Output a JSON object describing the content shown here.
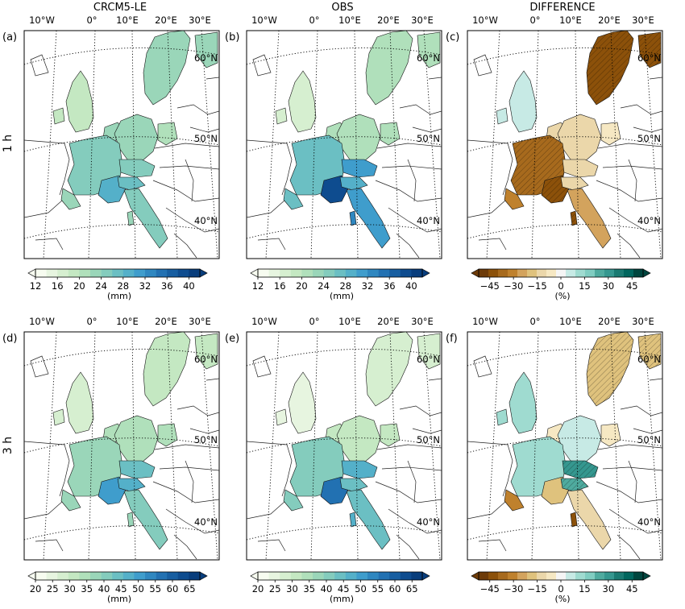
{
  "columns": [
    {
      "id": "crcm5",
      "title": "CRCM5-LE"
    },
    {
      "id": "obs",
      "title": "OBS"
    },
    {
      "id": "diff",
      "title": "DIFFERENCE"
    }
  ],
  "rows": [
    {
      "label": "1 h"
    },
    {
      "label": "3 h"
    }
  ],
  "chart_data": {
    "type": "heatmap",
    "panels": [
      {
        "letter": "(a)",
        "row": "1 h",
        "column": "CRCM5-LE",
        "colorbar": "amount_1h"
      },
      {
        "letter": "(b)",
        "row": "1 h",
        "column": "OBS",
        "colorbar": "amount_1h"
      },
      {
        "letter": "(c)",
        "row": "1 h",
        "column": "DIFFERENCE",
        "colorbar": "difference"
      },
      {
        "letter": "(d)",
        "row": "3 h",
        "column": "CRCM5-LE",
        "colorbar": "amount_3h"
      },
      {
        "letter": "(e)",
        "row": "3 h",
        "column": "OBS",
        "colorbar": "amount_3h"
      },
      {
        "letter": "(f)",
        "row": "3 h",
        "column": "DIFFERENCE",
        "colorbar": "difference"
      }
    ],
    "map_labels": {
      "lon_top": [
        "10°W",
        "0°",
        "10°E",
        "20°E",
        "30°E"
      ],
      "lat_right": [
        "60°N",
        "50°N",
        "40°N"
      ]
    },
    "colorbars": {
      "amount_1h": {
        "unit": "(mm)",
        "ticks": [
          "12",
          "16",
          "20",
          "24",
          "28",
          "32",
          "36",
          "40"
        ],
        "range": [
          12,
          42
        ],
        "colors": [
          "#f7fcf0",
          "#e7f5e0",
          "#d6efd0",
          "#c4e8c2",
          "#b0e0bb",
          "#9ad6b9",
          "#84ccbd",
          "#6bbfc3",
          "#54b0c9",
          "#3f9dcc",
          "#2f87c0",
          "#2271b2",
          "#175ea1",
          "#0e4c8f",
          "#083d7c"
        ]
      },
      "amount_3h": {
        "unit": "(mm)",
        "ticks": [
          "20",
          "25",
          "30",
          "35",
          "40",
          "45",
          "50",
          "55",
          "60",
          "65"
        ],
        "range": [
          20,
          68
        ],
        "colors": [
          "#f7fcf0",
          "#e7f5e0",
          "#d6efd0",
          "#c4e8c2",
          "#b0e0bb",
          "#9ad6b9",
          "#84ccbd",
          "#6bbfc3",
          "#54b0c9",
          "#3f9dcc",
          "#2f87c0",
          "#2271b2",
          "#175ea1",
          "#0e4c8f",
          "#083d7c"
        ]
      },
      "difference": {
        "unit": "(%)",
        "ticks": [
          "−45",
          "−30",
          "−15",
          "0",
          "15",
          "30",
          "45"
        ],
        "range": [
          -52,
          52
        ],
        "colors": [
          "#6d3b09",
          "#8c510a",
          "#a76a1d",
          "#bf812d",
          "#d3a35d",
          "#dfc27d",
          "#ebd7aa",
          "#f6e8c3",
          "#f5f5f5",
          "#c7eae5",
          "#9fdbd0",
          "#80cdc1",
          "#4fab9f",
          "#35978f",
          "#1a7a72",
          "#01665e",
          "#00463f"
        ]
      }
    },
    "regions": {
      "amount_1h": {
        "scandinavia": [
          22,
          20
        ],
        "britain": [
          18,
          17
        ],
        "benelux": [
          22,
          20
        ],
        "germany": [
          22,
          21
        ],
        "poland": [
          21,
          20
        ],
        "france": [
          24,
          27
        ],
        "se_france": [
          29,
          39
        ],
        "iberia_coast": [
          22,
          26
        ],
        "alps": [
          24,
          31
        ],
        "italy": [
          24,
          30
        ],
        "corsica": [
          22,
          33
        ],
        "po_plain": [
          26,
          28
        ]
      },
      "amount_3h": {
        "scandinavia": [
          30,
          27
        ],
        "britain": [
          28,
          25
        ],
        "benelux": [
          33,
          30
        ],
        "germany": [
          34,
          31
        ],
        "poland": [
          33,
          30
        ],
        "france": [
          38,
          41
        ],
        "se_france": [
          50,
          58
        ],
        "iberia_coast": [
          36,
          40
        ],
        "alps": [
          44,
          47
        ],
        "italy": [
          42,
          45
        ],
        "corsica": [
          38,
          46
        ],
        "po_plain": [
          46,
          44
        ]
      },
      "difference": {
        "1h": {
          "scandinavia": -40,
          "britain": 8,
          "benelux": -10,
          "germany": -12,
          "poland": -5,
          "france": -38,
          "se_france": -45,
          "iberia_coast": -30,
          "alps": -15,
          "italy": -25,
          "corsica": -40,
          "po_plain": -10
        },
        "3h": {
          "scandinavia": -20,
          "britain": 10,
          "benelux": -5,
          "germany": 5,
          "poland": -8,
          "france": 12,
          "se_france": -20,
          "iberia_coast": -30,
          "alps": 30,
          "italy": -10,
          "corsica": -40,
          "po_plain": 25
        }
      }
    }
  }
}
